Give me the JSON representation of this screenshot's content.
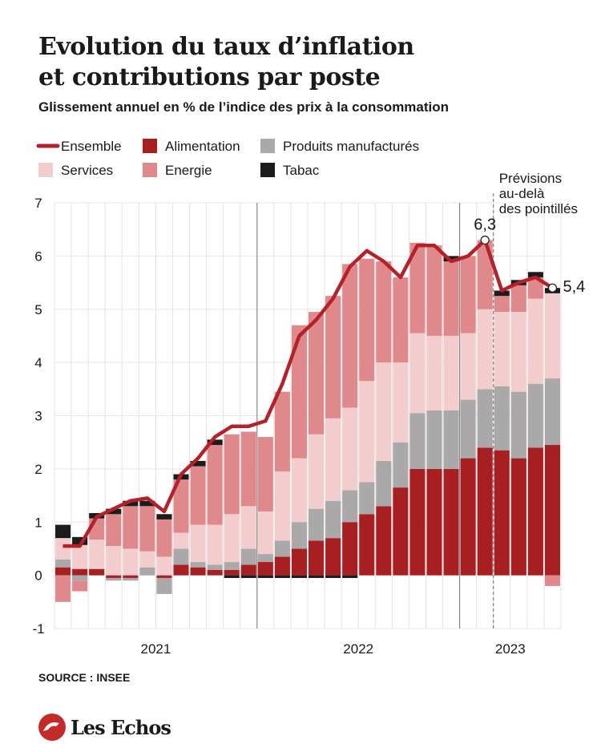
{
  "chart_data": {
    "type": "stacked_bar_line",
    "title": "Evolution du taux d’inflation et contributions par poste",
    "subtitle": "Glissement annuel en % de l’indice des prix à la consommation",
    "annotation": [
      "Prévisions",
      "au-delà",
      "des pointillés"
    ],
    "forecast_start": 26,
    "source": "SOURCE : INSEE",
    "brand": "Les Echos",
    "categories": [
      null,
      null,
      null,
      null,
      null,
      null,
      null,
      null,
      null,
      null,
      null,
      null,
      null,
      null,
      null,
      null,
      null,
      null,
      null,
      null,
      null,
      null,
      null,
      null,
      null,
      null,
      null,
      null,
      null,
      null
    ],
    "year_groups": [
      {
        "label": "2021",
        "count": 12
      },
      {
        "label": "2022",
        "count": 12
      },
      {
        "label": "2023",
        "count": 6
      }
    ],
    "ylim": [
      -1,
      7
    ],
    "yticks": [
      -1,
      0,
      1,
      2,
      3,
      4,
      5,
      6,
      7
    ],
    "grid": true,
    "series": [
      {
        "name": "Ensemble",
        "kind": "line",
        "color": "#b52128",
        "values": [
          0.55,
          0.55,
          1.1,
          1.25,
          1.4,
          1.45,
          1.2,
          1.9,
          2.2,
          2.6,
          2.8,
          2.8,
          2.9,
          3.6,
          4.5,
          4.8,
          5.2,
          5.8,
          6.1,
          5.9,
          5.6,
          6.2,
          6.2,
          5.9,
          6.0,
          6.3,
          5.35,
          5.5,
          5.6,
          5.4
        ],
        "value_labels": [
          null,
          null,
          null,
          null,
          null,
          null,
          null,
          null,
          null,
          null,
          null,
          null,
          null,
          null,
          null,
          null,
          null,
          null,
          null,
          null,
          null,
          null,
          null,
          null,
          null,
          "6,3",
          null,
          null,
          null,
          "5,4"
        ]
      },
      {
        "name": "Alimentation",
        "kind": "bar",
        "color": "#a81f22",
        "values": [
          0.15,
          0.12,
          0.12,
          -0.05,
          -0.05,
          0,
          -0.05,
          0.2,
          0.15,
          0.1,
          0.1,
          0.2,
          0.25,
          0.35,
          0.5,
          0.65,
          0.7,
          1.0,
          1.15,
          1.3,
          1.65,
          2.0,
          2.0,
          2.0,
          2.2,
          2.4,
          2.35,
          2.2,
          2.4,
          2.45
        ]
      },
      {
        "name": "Produits manufacturés",
        "kind": "bar",
        "color": "#aaa8a9",
        "values": [
          0.15,
          -0.1,
          0,
          -0.05,
          -0.05,
          0.15,
          -0.3,
          0.3,
          0.1,
          0.1,
          0.15,
          0.3,
          0.15,
          0.3,
          0.5,
          0.6,
          0.7,
          0.6,
          0.6,
          0.85,
          0.85,
          1.05,
          1.1,
          1.1,
          1.1,
          1.1,
          1.2,
          1.25,
          1.2,
          1.25
        ]
      },
      {
        "name": "Services",
        "kind": "bar",
        "color": "#f3cdce",
        "values": [
          0.4,
          0.45,
          0.55,
          0.55,
          0.5,
          0.3,
          0.35,
          0.3,
          0.7,
          0.75,
          0.9,
          0.8,
          0.8,
          1.3,
          1.2,
          1.4,
          1.55,
          1.55,
          1.9,
          1.85,
          1.5,
          1.5,
          1.4,
          1.4,
          1.25,
          1.5,
          1.4,
          1.5,
          1.6,
          1.6
        ]
      },
      {
        "name": "Energie",
        "kind": "bar",
        "color": "#e0898d",
        "values": [
          -0.5,
          -0.2,
          0.4,
          0.6,
          0.8,
          0.85,
          0.7,
          1.0,
          1.1,
          1.5,
          1.5,
          1.4,
          1.4,
          1.5,
          2.5,
          2.3,
          2.3,
          2.7,
          2.3,
          1.9,
          1.6,
          1.7,
          1.7,
          1.4,
          1.45,
          1.3,
          0.3,
          0.5,
          0.4,
          -0.2
        ]
      },
      {
        "name": "Tabac",
        "kind": "bar",
        "color": "#1c1c1c",
        "values": [
          0.25,
          0.15,
          0.1,
          0.1,
          0.1,
          0.1,
          0.1,
          0.1,
          0.1,
          0.1,
          -0.05,
          -0.05,
          -0.05,
          -0.05,
          -0.05,
          -0.05,
          -0.05,
          -0.05,
          0,
          0,
          0,
          0,
          0,
          0.1,
          0,
          0,
          0.1,
          0.1,
          0.1,
          0.1
        ]
      }
    ]
  }
}
